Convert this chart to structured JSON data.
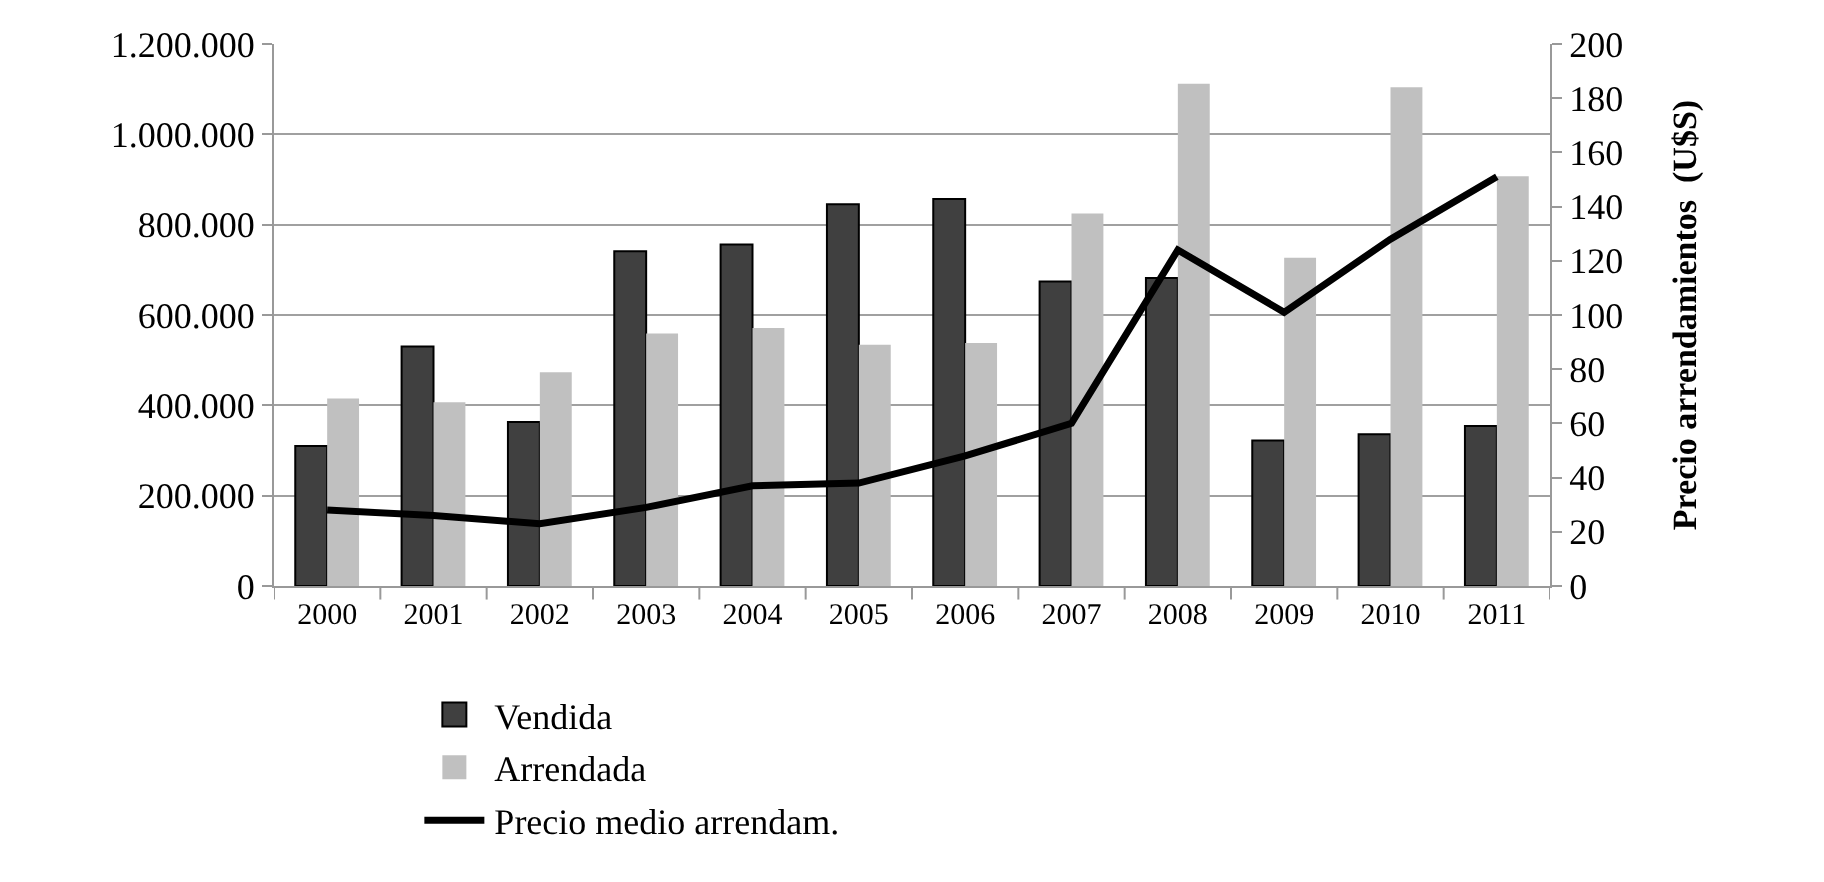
{
  "chart_data": {
    "type": "bar",
    "y2label": "Precio arrendamientos  (U$S)",
    "categories": [
      "2000",
      "2001",
      "2002",
      "2003",
      "2004",
      "2005",
      "2006",
      "2007",
      "2008",
      "2009",
      "2010",
      "2011"
    ],
    "series": [
      {
        "name": "Vendida",
        "color": "#404040",
        "values": [
          310000,
          530000,
          363000,
          741000,
          756000,
          845000,
          857000,
          674000,
          682000,
          322000,
          336000,
          354000
        ]
      },
      {
        "name": "Arrendada",
        "color": "#c0c0c0",
        "values": [
          415000,
          407000,
          473000,
          559000,
          571000,
          534000,
          538000,
          825000,
          1112000,
          727000,
          1104000,
          907000
        ]
      },
      {
        "name": "Precio medio arrendam.",
        "color": "#000000",
        "type": "line",
        "axis": "y2",
        "values": [
          28,
          26,
          23,
          29,
          37,
          38,
          48,
          60,
          124,
          101,
          128,
          151
        ]
      }
    ],
    "ylim": [
      0,
      1200000
    ],
    "yticks": [
      0,
      {
        "value": 200000,
        "label": "200.000"
      },
      {
        "value": 400000,
        "label": "400.000"
      },
      {
        "value": 600000,
        "label": "600.000"
      },
      {
        "value": 800000,
        "label": "800.000"
      },
      {
        "value": 1000000,
        "label": "1.000.000"
      },
      {
        "value": 1200000,
        "label": "1.200.000"
      }
    ],
    "y2lim": [
      0,
      200
    ],
    "y2ticks": [
      0,
      20,
      40,
      60,
      80,
      100,
      120,
      140,
      160,
      180,
      200
    ],
    "grid": "y",
    "legend": "bottom",
    "marker": "none",
    "line_style": "solid"
  }
}
